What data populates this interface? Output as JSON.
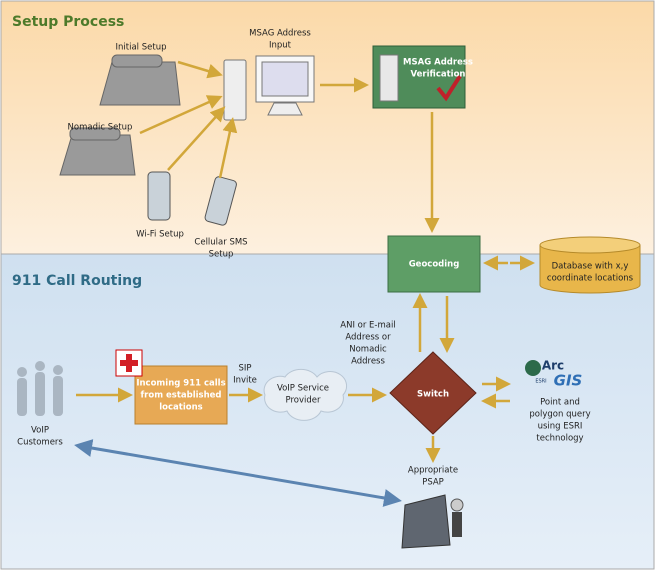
{
  "sections": [
    "Setup Process",
    "911 Call Routing"
  ],
  "nodes": [
    {
      "lines": [
        "Initial Setup"
      ]
    },
    {
      "lines": [
        "Nomadic Setup"
      ]
    },
    {
      "lines": [
        "Wi-Fi Setup"
      ]
    },
    {
      "lines": [
        "Cellular SMS",
        "Setup"
      ]
    },
    {
      "lines": [
        "MSAG Address",
        "Input"
      ]
    },
    {
      "lines": [
        "MSAG Address",
        "Verification"
      ]
    },
    {
      "lines": [
        "Geocoding"
      ]
    },
    {
      "lines": [
        "Database with x,y",
        "coordinate locations"
      ]
    },
    {
      "lines": [
        "VoIP",
        "Customers"
      ]
    },
    {
      "lines": [
        "Incoming 911 calls",
        "from established",
        "locations"
      ]
    },
    {
      "lines": [
        "SIP",
        "Invite"
      ]
    },
    {
      "lines": [
        "VoIP Service",
        "Provider"
      ]
    },
    {
      "lines": [
        "ANI or E-mail",
        "Address or",
        "Nomadic",
        "Address"
      ]
    },
    {
      "lines": [
        "Switch"
      ]
    },
    {
      "lines": [
        "Point and",
        "polygon query",
        "using ESRI",
        "technology"
      ]
    },
    {
      "lines": [
        "Appropriate",
        "PSAP"
      ]
    }
  ],
  "logo": {
    "arc": "Arc",
    "gis": "GIS",
    "esri": "ESRI"
  }
}
